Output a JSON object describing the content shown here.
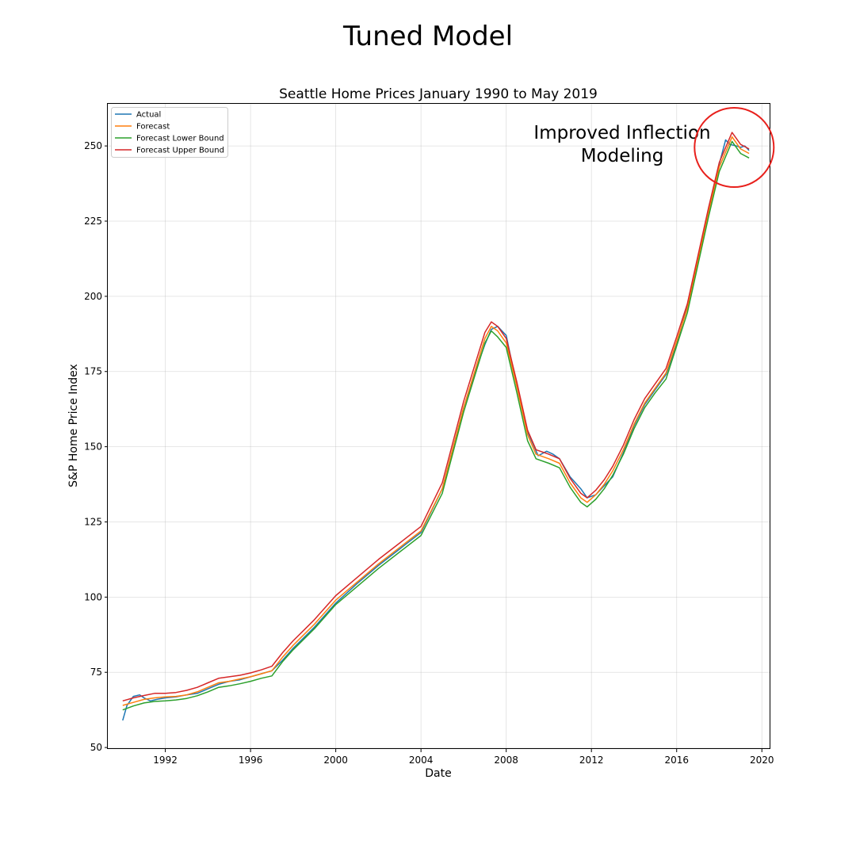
{
  "figure_title": "Tuned Model",
  "chart_data": {
    "type": "line",
    "title": "Seattle Home Prices January 1990 to May 2019",
    "xlabel": "Date",
    "ylabel": "S&P Home Price Index",
    "xlim": [
      1989.3,
      2020.4
    ],
    "ylim": [
      49.5,
      264
    ],
    "xticks": [
      1992,
      1996,
      2000,
      2004,
      2008,
      2012,
      2016,
      2020
    ],
    "yticks": [
      50,
      75,
      100,
      125,
      150,
      175,
      200,
      225,
      250
    ],
    "grid": true,
    "legend_position": "top-left",
    "annotation": {
      "lines": [
        "Improved Inflection",
        "Modeling"
      ],
      "circle_center": [
        2018.7,
        249.5
      ],
      "circle_color": "#e8201c"
    },
    "series": [
      {
        "name": "Actual",
        "color": "#1f77b4",
        "x": [
          1990.0,
          1990.2,
          1990.5,
          1990.8,
          1991.0,
          1991.3,
          1991.6,
          1992.0,
          1992.5,
          1993.0,
          1993.5,
          1994.0,
          1994.5,
          1995.0,
          1995.5,
          1996.0,
          1996.5,
          1997.0,
          1997.5,
          1998.0,
          1999.0,
          2000.0,
          2001.0,
          2002.0,
          2003.0,
          2004.0,
          2005.0,
          2006.0,
          2006.8,
          2007.0,
          2007.3,
          2007.6,
          2008.0,
          2008.5,
          2009.0,
          2009.5,
          2009.9,
          2010.2,
          2010.5,
          2011.0,
          2011.5,
          2011.8,
          2012.2,
          2012.6,
          2013.0,
          2013.5,
          2014.0,
          2014.5,
          2015.0,
          2015.5,
          2016.0,
          2016.5,
          2017.0,
          2017.5,
          2018.0,
          2018.3,
          2018.5,
          2018.8,
          2019.0,
          2019.2,
          2019.4
        ],
        "y": [
          59,
          64,
          67,
          67.5,
          66.5,
          65.5,
          66,
          66.5,
          66.8,
          67.5,
          68,
          69.5,
          71,
          72,
          72.5,
          73.5,
          74.5,
          75.5,
          79,
          83,
          90,
          98,
          104.5,
          110.5,
          116,
          121.5,
          136,
          163,
          180,
          184,
          189,
          190,
          187,
          170,
          155,
          147,
          148.5,
          147.5,
          146,
          140,
          136,
          133,
          134,
          137,
          140,
          148,
          157,
          164,
          169,
          174,
          184,
          197,
          213,
          229,
          244,
          252,
          250.5,
          250,
          249.5,
          250,
          248.5
        ]
      },
      {
        "name": "Forecast",
        "color": "#ff7f0e",
        "x": [
          1990.0,
          1990.5,
          1991.0,
          1991.5,
          1992.0,
          1992.5,
          1993.0,
          1993.5,
          1994.0,
          1994.5,
          1995.0,
          1995.5,
          1996.0,
          1996.5,
          1997.0,
          1997.5,
          1998.0,
          1999.0,
          2000.0,
          2001.0,
          2002.0,
          2003.0,
          2004.0,
          2005.0,
          2006.0,
          2007.0,
          2007.3,
          2007.6,
          2008.0,
          2008.5,
          2009.0,
          2009.4,
          2010.0,
          2010.5,
          2011.0,
          2011.5,
          2011.8,
          2012.2,
          2012.6,
          2013.0,
          2013.5,
          2014.0,
          2014.5,
          2015.0,
          2015.5,
          2016.0,
          2016.5,
          2017.0,
          2017.5,
          2018.0,
          2018.6,
          2019.0,
          2019.4
        ],
        "y": [
          64,
          65,
          66,
          66.5,
          66.8,
          67,
          67.5,
          68.5,
          70,
          71.5,
          72,
          72.8,
          73.5,
          74.5,
          75.5,
          80,
          84,
          91,
          99,
          105,
          111,
          116.5,
          122,
          136,
          163,
          186,
          190,
          188.5,
          184.5,
          170,
          154,
          147.5,
          146,
          144.5,
          138,
          133,
          131.5,
          134,
          137.5,
          142,
          149,
          157.5,
          164.5,
          169.5,
          174.5,
          185,
          196,
          212,
          228,
          243,
          253,
          249,
          247.5
        ]
      },
      {
        "name": "Forecast Lower Bound",
        "color": "#2ca02c",
        "x": [
          1990.0,
          1990.5,
          1991.0,
          1991.5,
          1992.0,
          1992.5,
          1993.0,
          1993.5,
          1994.0,
          1994.5,
          1995.0,
          1995.5,
          1996.0,
          1996.5,
          1997.0,
          1997.5,
          1998.0,
          1999.0,
          2000.0,
          2001.0,
          2002.0,
          2003.0,
          2004.0,
          2005.0,
          2006.0,
          2007.0,
          2007.3,
          2007.6,
          2008.0,
          2008.5,
          2009.0,
          2009.4,
          2010.0,
          2010.5,
          2011.0,
          2011.5,
          2011.8,
          2012.2,
          2012.6,
          2013.0,
          2013.5,
          2014.0,
          2014.5,
          2015.0,
          2015.5,
          2016.0,
          2016.5,
          2017.0,
          2017.5,
          2018.0,
          2018.6,
          2019.0,
          2019.4
        ],
        "y": [
          62.5,
          63.8,
          64.8,
          65.3,
          65.5,
          65.8,
          66.3,
          67.2,
          68.5,
          70,
          70.5,
          71.2,
          72,
          73,
          73.8,
          78.5,
          82.5,
          89.5,
          97.5,
          103.5,
          109.5,
          115,
          120.5,
          134.5,
          161.5,
          184.5,
          188.5,
          186.5,
          183,
          168,
          152,
          146,
          144.5,
          143,
          136.5,
          131.5,
          130,
          132.5,
          136,
          140.5,
          147.5,
          156,
          163,
          168,
          172.5,
          183.5,
          194.5,
          210.5,
          226.5,
          241.5,
          251.5,
          247.5,
          246
        ]
      },
      {
        "name": "Forecast Upper Bound",
        "color": "#d62728",
        "x": [
          1990.0,
          1990.5,
          1991.0,
          1991.5,
          1992.0,
          1992.5,
          1993.0,
          1993.5,
          1994.0,
          1994.5,
          1995.0,
          1995.5,
          1996.0,
          1996.5,
          1997.0,
          1997.5,
          1998.0,
          1999.0,
          2000.0,
          2001.0,
          2002.0,
          2003.0,
          2004.0,
          2005.0,
          2006.0,
          2007.0,
          2007.3,
          2007.6,
          2008.0,
          2008.5,
          2009.0,
          2009.4,
          2010.0,
          2010.5,
          2011.0,
          2011.5,
          2011.8,
          2012.2,
          2012.6,
          2013.0,
          2013.5,
          2014.0,
          2014.5,
          2015.0,
          2015.5,
          2016.0,
          2016.5,
          2017.0,
          2017.5,
          2018.0,
          2018.6,
          2019.0,
          2019.4
        ],
        "y": [
          65.5,
          66.5,
          67.3,
          68,
          68,
          68.3,
          69,
          70,
          71.5,
          73,
          73.5,
          74,
          74.8,
          75.8,
          77,
          81.5,
          85.5,
          92.5,
          100.5,
          106.5,
          112.5,
          118,
          123.5,
          138,
          165,
          188,
          191.5,
          190,
          186,
          171.5,
          155.5,
          149,
          147.5,
          146,
          139.5,
          134.5,
          133,
          135.5,
          139,
          143.5,
          150.5,
          159,
          166,
          171,
          176,
          186.5,
          197.5,
          213.5,
          229.5,
          244.5,
          254.5,
          250.5,
          249
        ]
      }
    ]
  }
}
